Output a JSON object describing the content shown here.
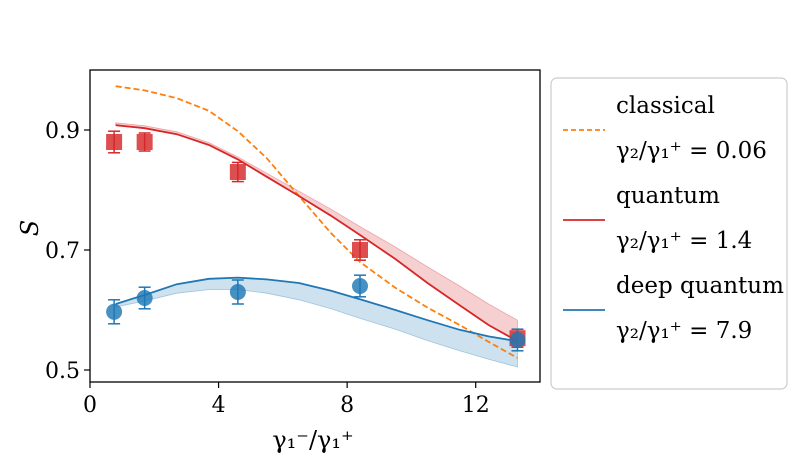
{
  "chart_data": {
    "type": "line",
    "xlabel": "γ₁⁻/γ₁⁺",
    "ylabel": "S",
    "xlim": [
      0,
      14
    ],
    "ylim": [
      0.48,
      1.0
    ],
    "xticks": [
      0,
      4,
      8,
      12
    ],
    "xtick_labels": [
      "0",
      "4",
      "8",
      "12"
    ],
    "yticks": [
      0.5,
      0.7,
      0.9
    ],
    "ytick_labels": [
      "0.5",
      "0.7",
      "0.9"
    ],
    "grid": false,
    "legend_placement": "outside-right",
    "series": [
      {
        "name": "classical",
        "legend_sub": "γ₂/γ₁⁺ = 0.06",
        "color": "#ff7f0e",
        "style": "dashed",
        "x": [
          0.8,
          1.7,
          2.7,
          3.7,
          4.6,
          5.5,
          6.5,
          7.5,
          8.4,
          9.5,
          10.5,
          11.5,
          12.4,
          13.3
        ],
        "y": [
          0.973,
          0.966,
          0.953,
          0.932,
          0.898,
          0.853,
          0.79,
          0.728,
          0.68,
          0.637,
          0.604,
          0.575,
          0.547,
          0.52
        ]
      },
      {
        "name": "quantum",
        "legend_sub": "γ₂/γ₁⁺ = 1.4",
        "color": "#d62728",
        "style": "solid",
        "x": [
          0.8,
          1.7,
          2.7,
          3.7,
          4.6,
          5.5,
          6.5,
          7.5,
          8.4,
          9.5,
          10.5,
          11.5,
          12.4,
          13.3
        ],
        "y": [
          0.908,
          0.903,
          0.893,
          0.875,
          0.851,
          0.822,
          0.79,
          0.757,
          0.725,
          0.685,
          0.645,
          0.608,
          0.575,
          0.548
        ],
        "band_upper": [
          0.912,
          0.907,
          0.897,
          0.879,
          0.855,
          0.828,
          0.798,
          0.768,
          0.739,
          0.705,
          0.672,
          0.64,
          0.61,
          0.583
        ]
      },
      {
        "name": "deep quantum",
        "legend_sub": "γ₂/γ₁⁺ = 7.9",
        "color": "#1f77b4",
        "style": "solid",
        "x": [
          0.8,
          1.7,
          2.7,
          3.7,
          4.6,
          5.5,
          6.5,
          7.5,
          8.4,
          9.5,
          10.5,
          11.5,
          12.4,
          13.3
        ],
        "y": [
          0.61,
          0.625,
          0.643,
          0.652,
          0.654,
          0.651,
          0.645,
          0.632,
          0.618,
          0.6,
          0.583,
          0.567,
          0.556,
          0.548
        ],
        "band_lower": [
          0.605,
          0.615,
          0.628,
          0.634,
          0.634,
          0.628,
          0.617,
          0.602,
          0.586,
          0.568,
          0.549,
          0.532,
          0.518,
          0.505
        ]
      }
    ],
    "scatter": [
      {
        "marker": "square",
        "color": "#d62728",
        "points": [
          {
            "x": 0.75,
            "y": 0.88,
            "err": 0.018
          },
          {
            "x": 1.7,
            "y": 0.88,
            "err": 0.015
          },
          {
            "x": 4.6,
            "y": 0.83,
            "err": 0.016
          },
          {
            "x": 8.4,
            "y": 0.7,
            "err": 0.017
          },
          {
            "x": 13.3,
            "y": 0.553,
            "err": 0.015
          }
        ]
      },
      {
        "marker": "circle",
        "color": "#1f77b4",
        "points": [
          {
            "x": 0.75,
            "y": 0.597,
            "err": 0.02
          },
          {
            "x": 1.7,
            "y": 0.62,
            "err": 0.018
          },
          {
            "x": 4.6,
            "y": 0.63,
            "err": 0.02
          },
          {
            "x": 8.4,
            "y": 0.64,
            "err": 0.018
          },
          {
            "x": 13.3,
            "y": 0.55,
            "err": 0.018
          }
        ]
      }
    ]
  }
}
